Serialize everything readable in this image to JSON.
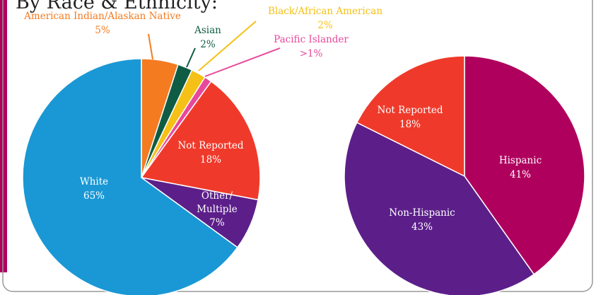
{
  "chart_data": [
    {
      "type": "pie",
      "title": "By Race & Ethnicity:",
      "categories": [
        "American Indian/Alaskan Native",
        "Asian",
        "Black/African American",
        "Pacific Islander",
        "Not Reported",
        "Other/Multiple",
        "White"
      ],
      "values": [
        5,
        2,
        2,
        1,
        18,
        7,
        65
      ],
      "value_labels": [
        "5%",
        "2%",
        "2%",
        ">1%",
        "18%",
        "7%",
        "65%"
      ],
      "colors": [
        "#f47b20",
        "#0f5c45",
        "#f5c116",
        "#e8489a",
        "#ef3a2b",
        "#5c1f8a",
        "#1a98d5"
      ]
    },
    {
      "type": "pie",
      "categories": [
        "Hispanic",
        "Non-Hispanic",
        "Not Reported"
      ],
      "values": [
        41,
        43,
        18
      ],
      "value_labels": [
        "41%",
        "43%",
        "18%"
      ],
      "colors": [
        "#b0005e",
        "#5c1f8a",
        "#ef3a2b"
      ]
    }
  ]
}
